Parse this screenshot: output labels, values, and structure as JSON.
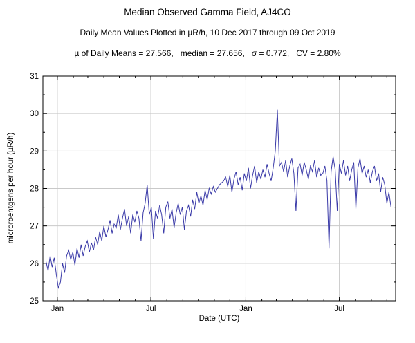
{
  "chart_data": {
    "type": "line",
    "title": "Median Observed Gamma Field, AJ4CO",
    "subtitle": "Daily Mean Values Plotted in µR/h, 10 Dec 2017 through 09 Oct 2019",
    "stats_line": "µ of Daily Means = 27.566,   median = 27.656,   σ = 0.772,   CV = 2.80%",
    "xlabel": "Date (UTC)",
    "ylabel": "microroentgens per hour (µR/h)",
    "ylim": [
      25,
      31
    ],
    "yticks": [
      25,
      26,
      27,
      28,
      29,
      30,
      31
    ],
    "minor_yticks": [
      25.5,
      26.5,
      27.5,
      28.5,
      29.5,
      30.5
    ],
    "x_unit": "days since 2017-12-10",
    "xlim": [
      -6,
      677
    ],
    "xticks": [
      {
        "day": 22,
        "label": "Jan"
      },
      {
        "day": 203,
        "label": "Jul"
      },
      {
        "day": 387,
        "label": "Jan"
      },
      {
        "day": 568,
        "label": "Jul"
      }
    ],
    "minor_xticks_days": [
      22,
      53,
      81,
      112,
      142,
      173,
      203,
      234,
      265,
      295,
      326,
      356,
      387,
      418,
      446,
      477,
      507,
      538,
      568,
      599,
      630,
      660
    ],
    "grid": true,
    "legend": "none",
    "line_color": "#3a3aa8",
    "grid_color": "#c9c9c9",
    "axis_color": "#000000",
    "series": [
      {
        "name": "daily-mean-gamma",
        "x_day_start": 0,
        "x_day_step": 4,
        "values": [
          26.05,
          25.8,
          26.2,
          25.9,
          26.15,
          25.7,
          25.35,
          25.5,
          26.0,
          25.75,
          26.2,
          26.35,
          26.1,
          26.3,
          25.95,
          26.4,
          26.15,
          26.5,
          26.2,
          26.45,
          26.6,
          26.3,
          26.55,
          26.35,
          26.7,
          26.5,
          26.85,
          26.6,
          27.0,
          26.7,
          26.9,
          27.15,
          26.8,
          27.05,
          26.95,
          27.3,
          26.9,
          27.2,
          27.45,
          27.0,
          27.25,
          26.8,
          27.3,
          27.1,
          27.4,
          27.2,
          26.6,
          27.35,
          27.6,
          28.1,
          27.3,
          27.5,
          26.65,
          27.4,
          27.2,
          27.55,
          27.3,
          26.8,
          27.5,
          27.65,
          27.2,
          27.45,
          26.95,
          27.35,
          27.6,
          27.3,
          27.5,
          26.9,
          27.4,
          27.55,
          27.25,
          27.7,
          27.45,
          27.9,
          27.6,
          27.8,
          27.55,
          27.95,
          27.7,
          28.0,
          27.85,
          28.05,
          27.9,
          28.0,
          28.1,
          28.15,
          28.2,
          28.3,
          28.05,
          28.35,
          27.9,
          28.25,
          28.45,
          28.1,
          28.3,
          27.95,
          28.4,
          28.2,
          28.55,
          28.0,
          28.35,
          28.6,
          28.15,
          28.45,
          28.25,
          28.5,
          28.3,
          28.65,
          28.4,
          28.2,
          28.55,
          29.0,
          30.1,
          28.6,
          28.7,
          28.45,
          28.75,
          28.3,
          28.6,
          28.8,
          28.4,
          27.4,
          28.55,
          28.65,
          28.35,
          28.7,
          28.5,
          28.25,
          28.6,
          28.45,
          28.75,
          28.3,
          28.55,
          28.35,
          28.4,
          28.6,
          28.2,
          26.4,
          28.45,
          28.85,
          28.5,
          27.4,
          28.65,
          28.4,
          28.75,
          28.35,
          28.6,
          28.2,
          28.5,
          28.7,
          27.45,
          28.55,
          28.8,
          28.4,
          28.6,
          28.3,
          28.5,
          28.15,
          28.45,
          28.6,
          28.2,
          28.4,
          27.9,
          28.3,
          28.1,
          27.6,
          27.9,
          27.5
        ]
      }
    ]
  }
}
